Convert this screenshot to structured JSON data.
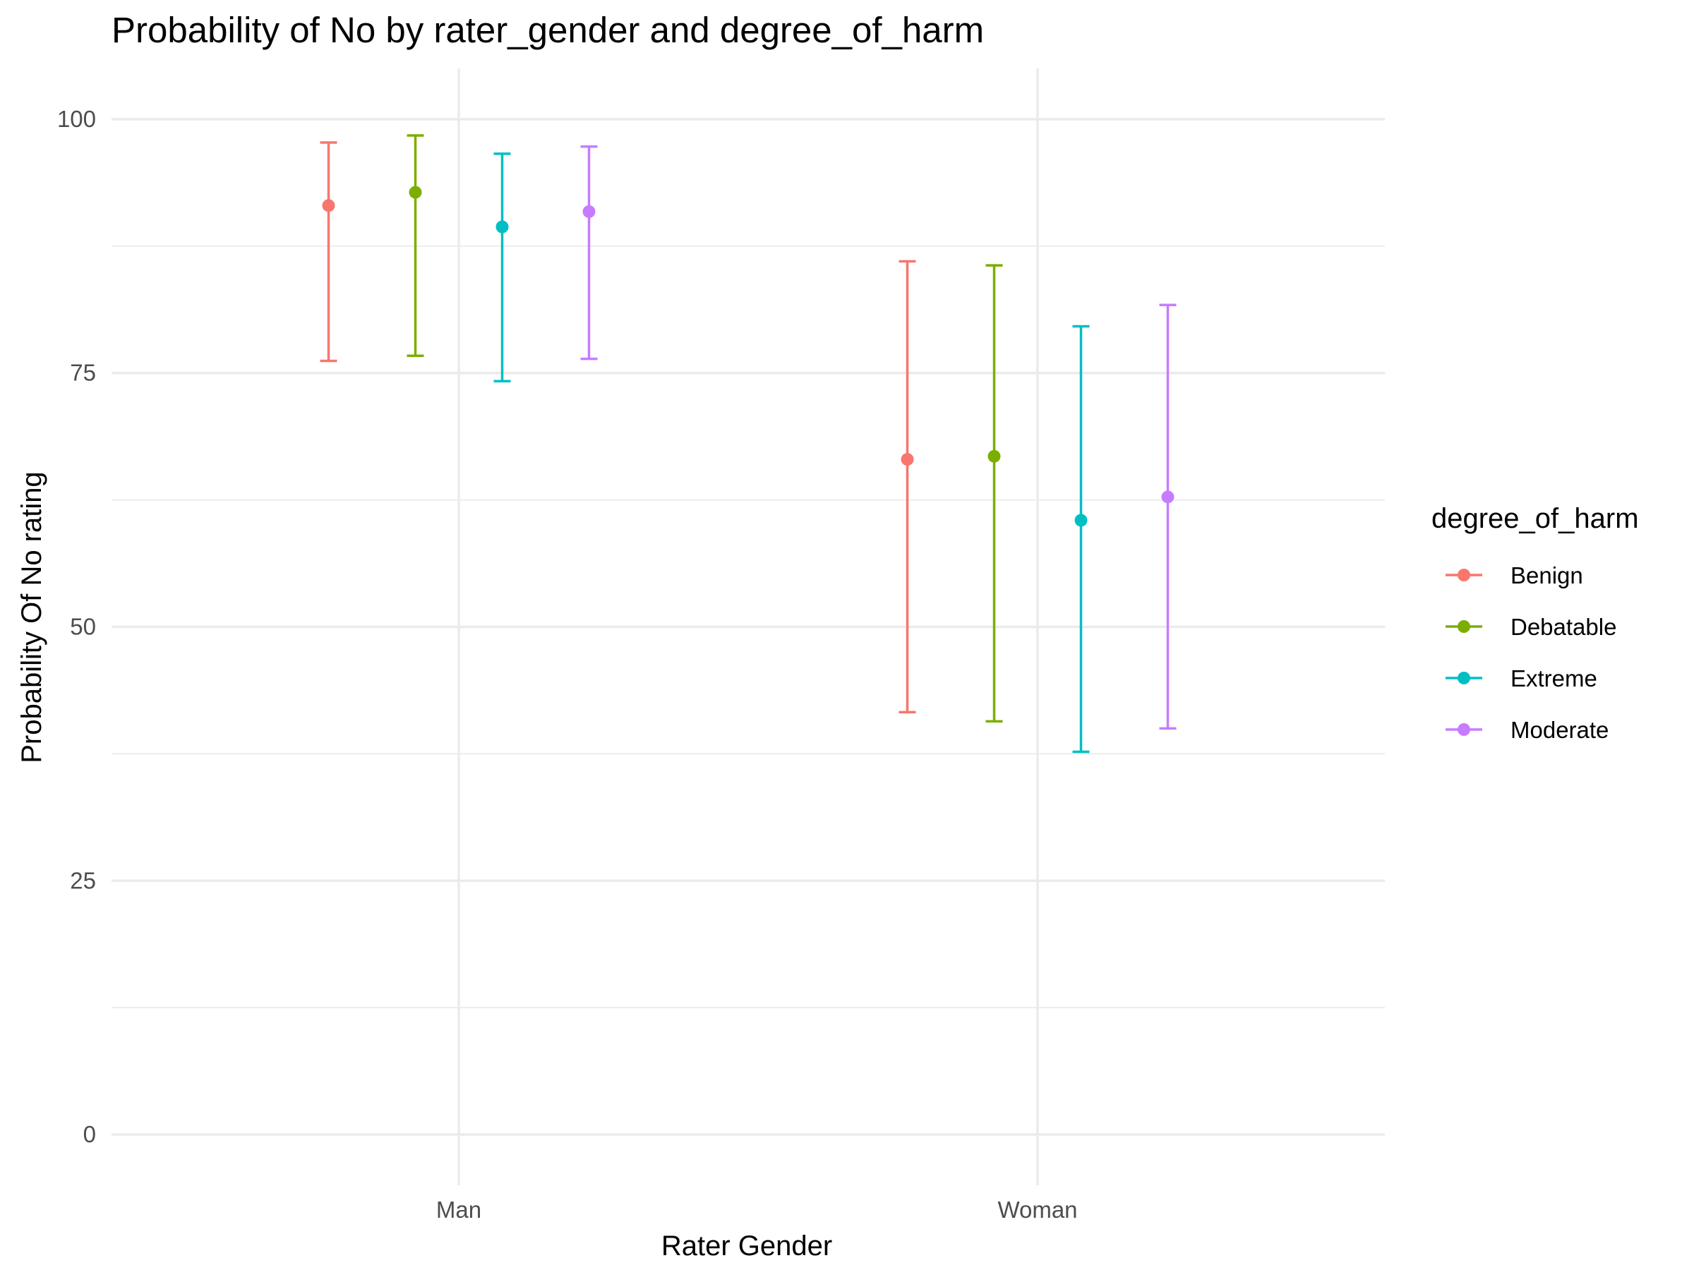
{
  "chart_data": {
    "type": "scatter",
    "title": "Probability of No by rater_gender and  degree_of_harm",
    "xlabel": "Rater Gender",
    "ylabel": "Probability Of No rating",
    "categories": [
      "Man",
      "Woman"
    ],
    "ylim": [
      -5,
      105
    ],
    "yticks": [
      0,
      25,
      50,
      75,
      100
    ],
    "grid": true,
    "legend_position": "right",
    "legend_title": "degree_of_harm",
    "series": [
      {
        "name": "Benign",
        "color": "#F8766D",
        "values": [
          91.5,
          66.5
        ],
        "lower": [
          76.2,
          41.6
        ],
        "upper": [
          97.7,
          86.0
        ]
      },
      {
        "name": "Debatable",
        "color": "#7CAE00",
        "values": [
          92.8,
          66.8
        ],
        "lower": [
          76.7,
          40.7
        ],
        "upper": [
          98.4,
          85.6
        ]
      },
      {
        "name": "Extreme",
        "color": "#00BFC4",
        "values": [
          89.4,
          60.5
        ],
        "lower": [
          74.2,
          37.7
        ],
        "upper": [
          96.6,
          79.6
        ]
      },
      {
        "name": "Moderate",
        "color": "#C77CFF",
        "values": [
          90.9,
          62.8
        ],
        "lower": [
          76.4,
          40.0
        ],
        "upper": [
          97.3,
          81.7
        ]
      }
    ]
  }
}
